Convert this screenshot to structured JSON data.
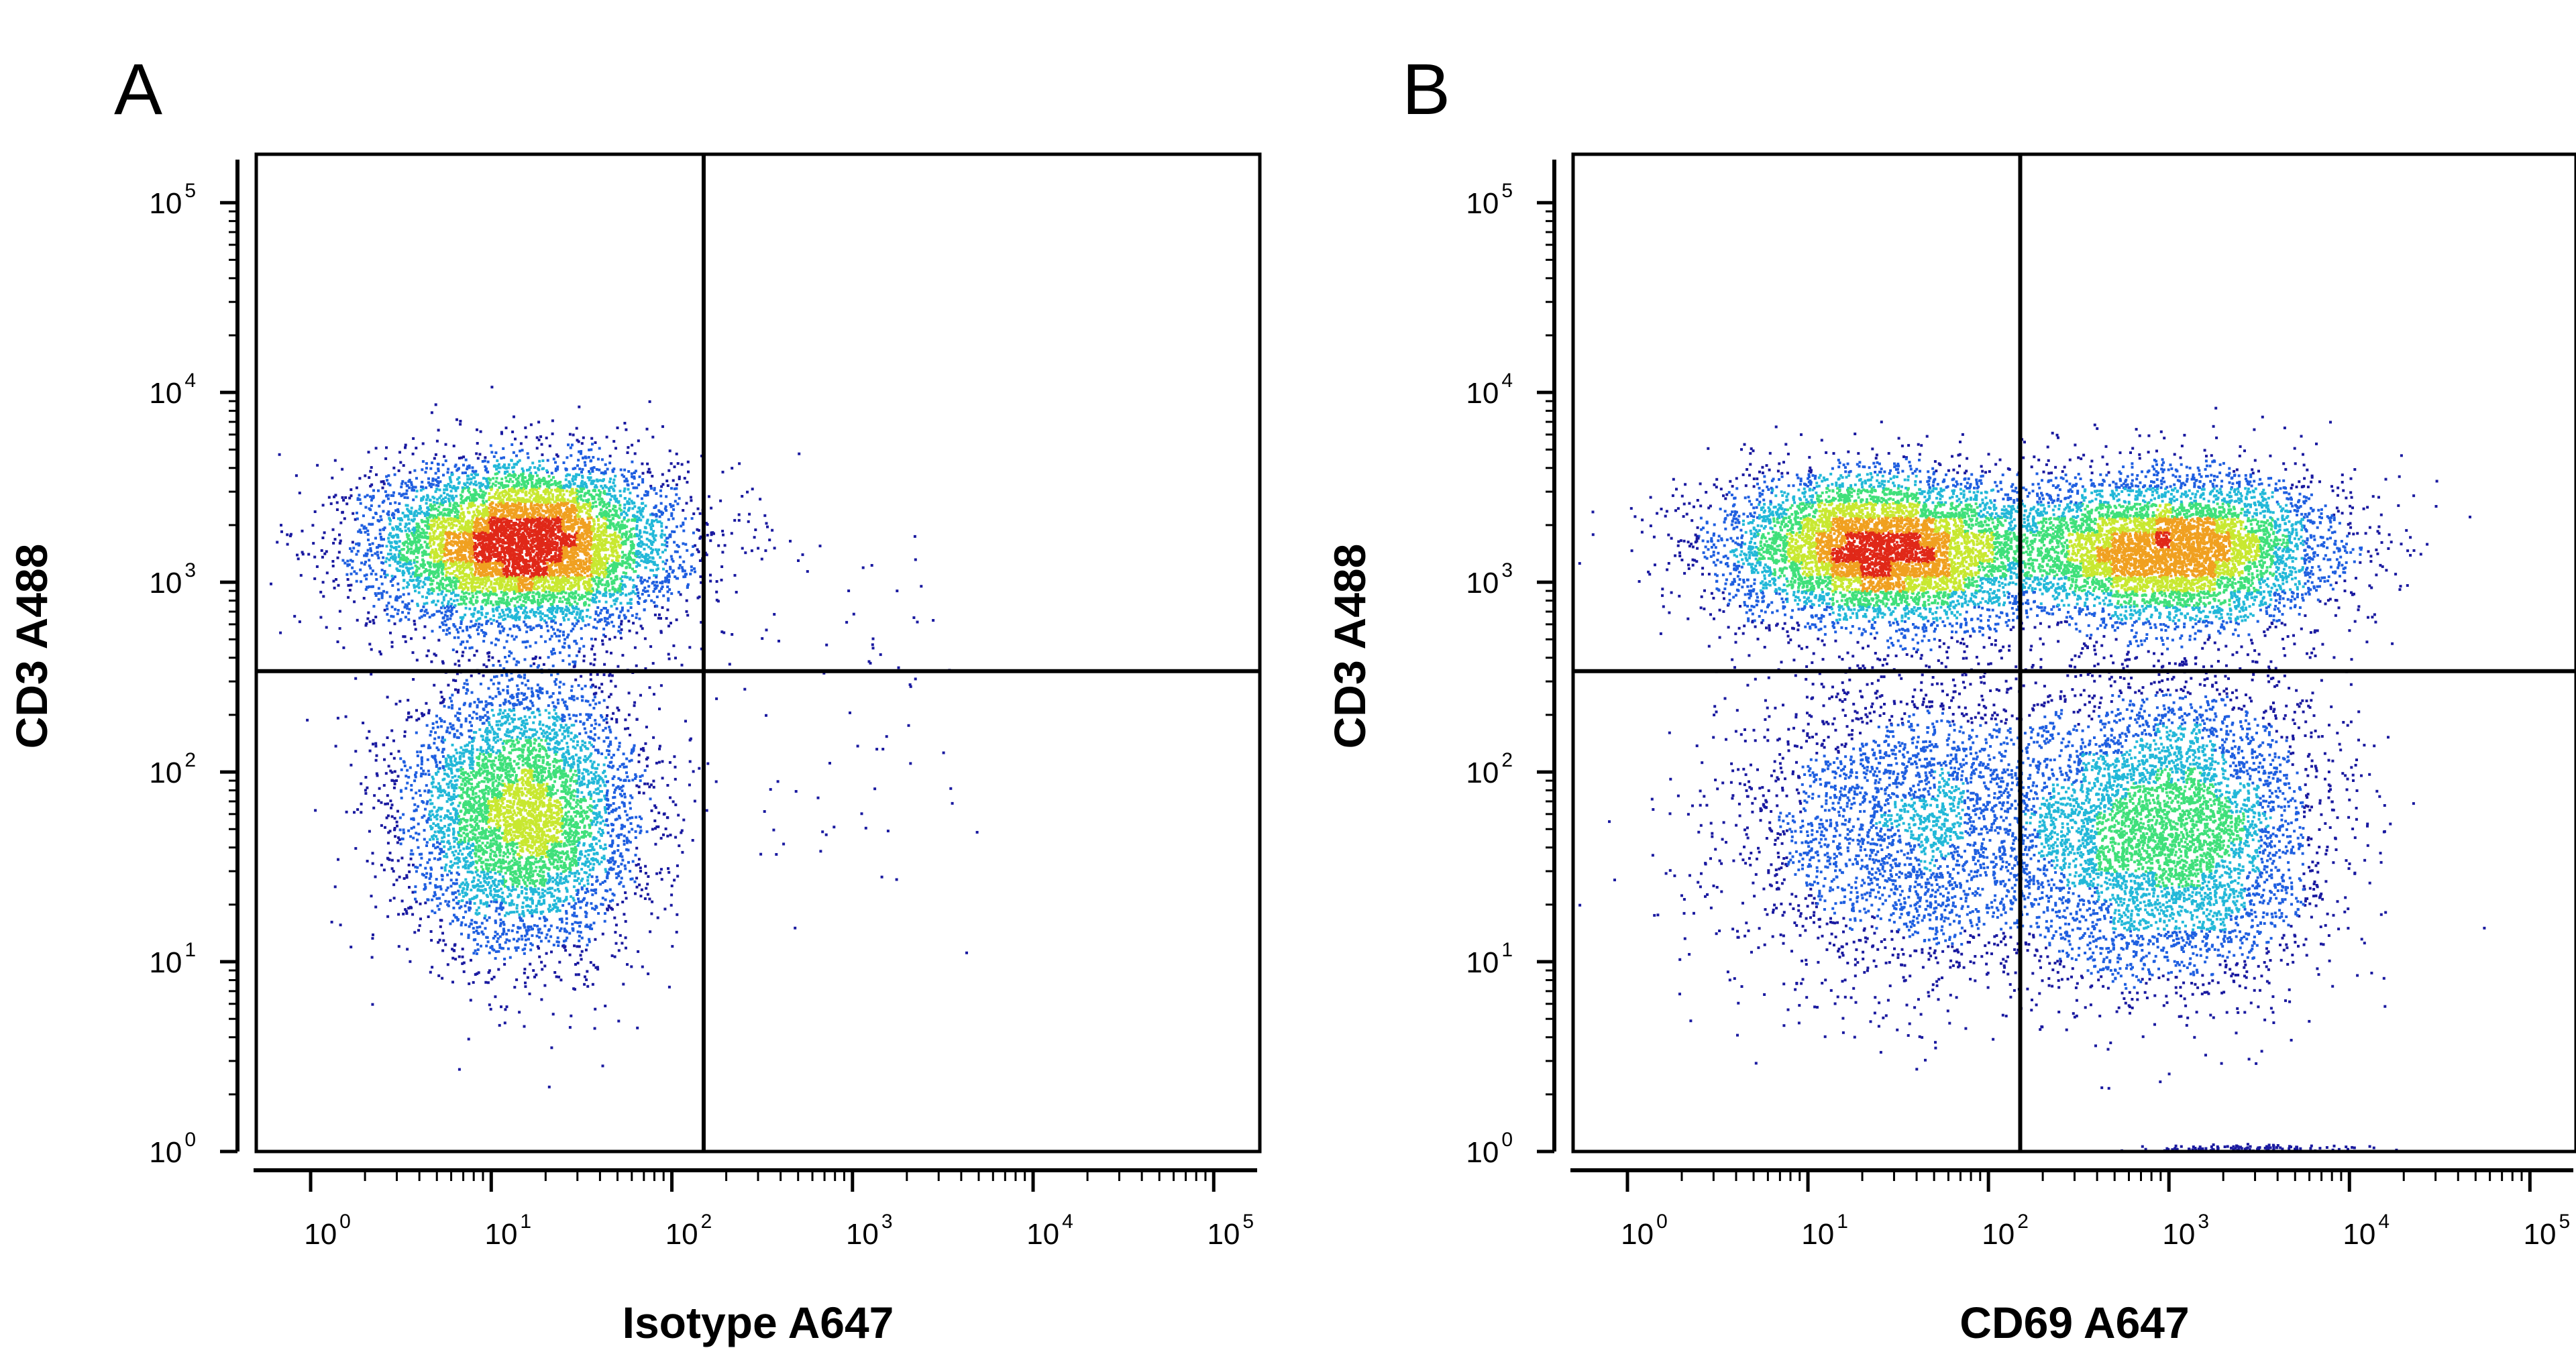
{
  "chart_data": [
    {
      "type": "scatter",
      "panel_label": "A",
      "xlabel": "Isotype A647",
      "ylabel": "CD3 A488",
      "x_scale": "log",
      "y_scale": "log",
      "xlim": [
        0.5,
        180000
      ],
      "ylim": [
        1,
        180000
      ],
      "x_ticks": [
        "10^0",
        "10^1",
        "10^2",
        "10^3",
        "10^4",
        "10^5"
      ],
      "y_ticks": [
        "10^0",
        "10^1",
        "10^2",
        "10^3",
        "10^4",
        "10^5"
      ],
      "quadrant_gate": {
        "x": 150,
        "y": 340
      },
      "density_colormap": [
        "#1a1aa0",
        "#1f5fe0",
        "#22b8d8",
        "#3fe07a",
        "#c8e830",
        "#f0a020",
        "#e02818"
      ],
      "populations": [
        {
          "cx": 15,
          "cy": 1600,
          "sx": 0.42,
          "sy": 0.22,
          "n": 7000
        },
        {
          "cx": 15,
          "cy": 60,
          "sx": 0.33,
          "sy": 0.36,
          "n": 5000
        },
        {
          "cx": 800,
          "cy": 600,
          "sx": 0.4,
          "sy": 0.35,
          "n": 45
        },
        {
          "cx": 800,
          "cy": 70,
          "sx": 0.35,
          "sy": 0.3,
          "n": 30
        }
      ]
    },
    {
      "type": "scatter",
      "panel_label": "B",
      "xlabel": "CD69 A647",
      "ylabel": "CD3 A488",
      "x_scale": "log",
      "y_scale": "log",
      "xlim": [
        0.5,
        180000
      ],
      "ylim": [
        1,
        180000
      ],
      "x_ticks": [
        "10^0",
        "10^1",
        "10^2",
        "10^3",
        "10^4",
        "10^5"
      ],
      "y_ticks": [
        "10^0",
        "10^1",
        "10^2",
        "10^3",
        "10^4",
        "10^5"
      ],
      "quadrant_gate": {
        "x": 150,
        "y": 340
      },
      "density_colormap": [
        "#1a1aa0",
        "#1f5fe0",
        "#22b8d8",
        "#3fe07a",
        "#c8e830",
        "#f0a020",
        "#e02818"
      ],
      "populations": [
        {
          "cx": 25,
          "cy": 1500,
          "sx": 0.45,
          "sy": 0.2,
          "n": 6000
        },
        {
          "cx": 1000,
          "cy": 1500,
          "sx": 0.45,
          "sy": 0.2,
          "n": 5500
        },
        {
          "cx": 40,
          "cy": 50,
          "sx": 0.5,
          "sy": 0.42,
          "n": 3000
        },
        {
          "cx": 1000,
          "cy": 50,
          "sx": 0.42,
          "sy": 0.4,
          "n": 5000
        },
        {
          "cx": 3000,
          "cy": 1.05,
          "sx": 0.3,
          "sy": 0.01,
          "n": 120
        }
      ]
    }
  ]
}
